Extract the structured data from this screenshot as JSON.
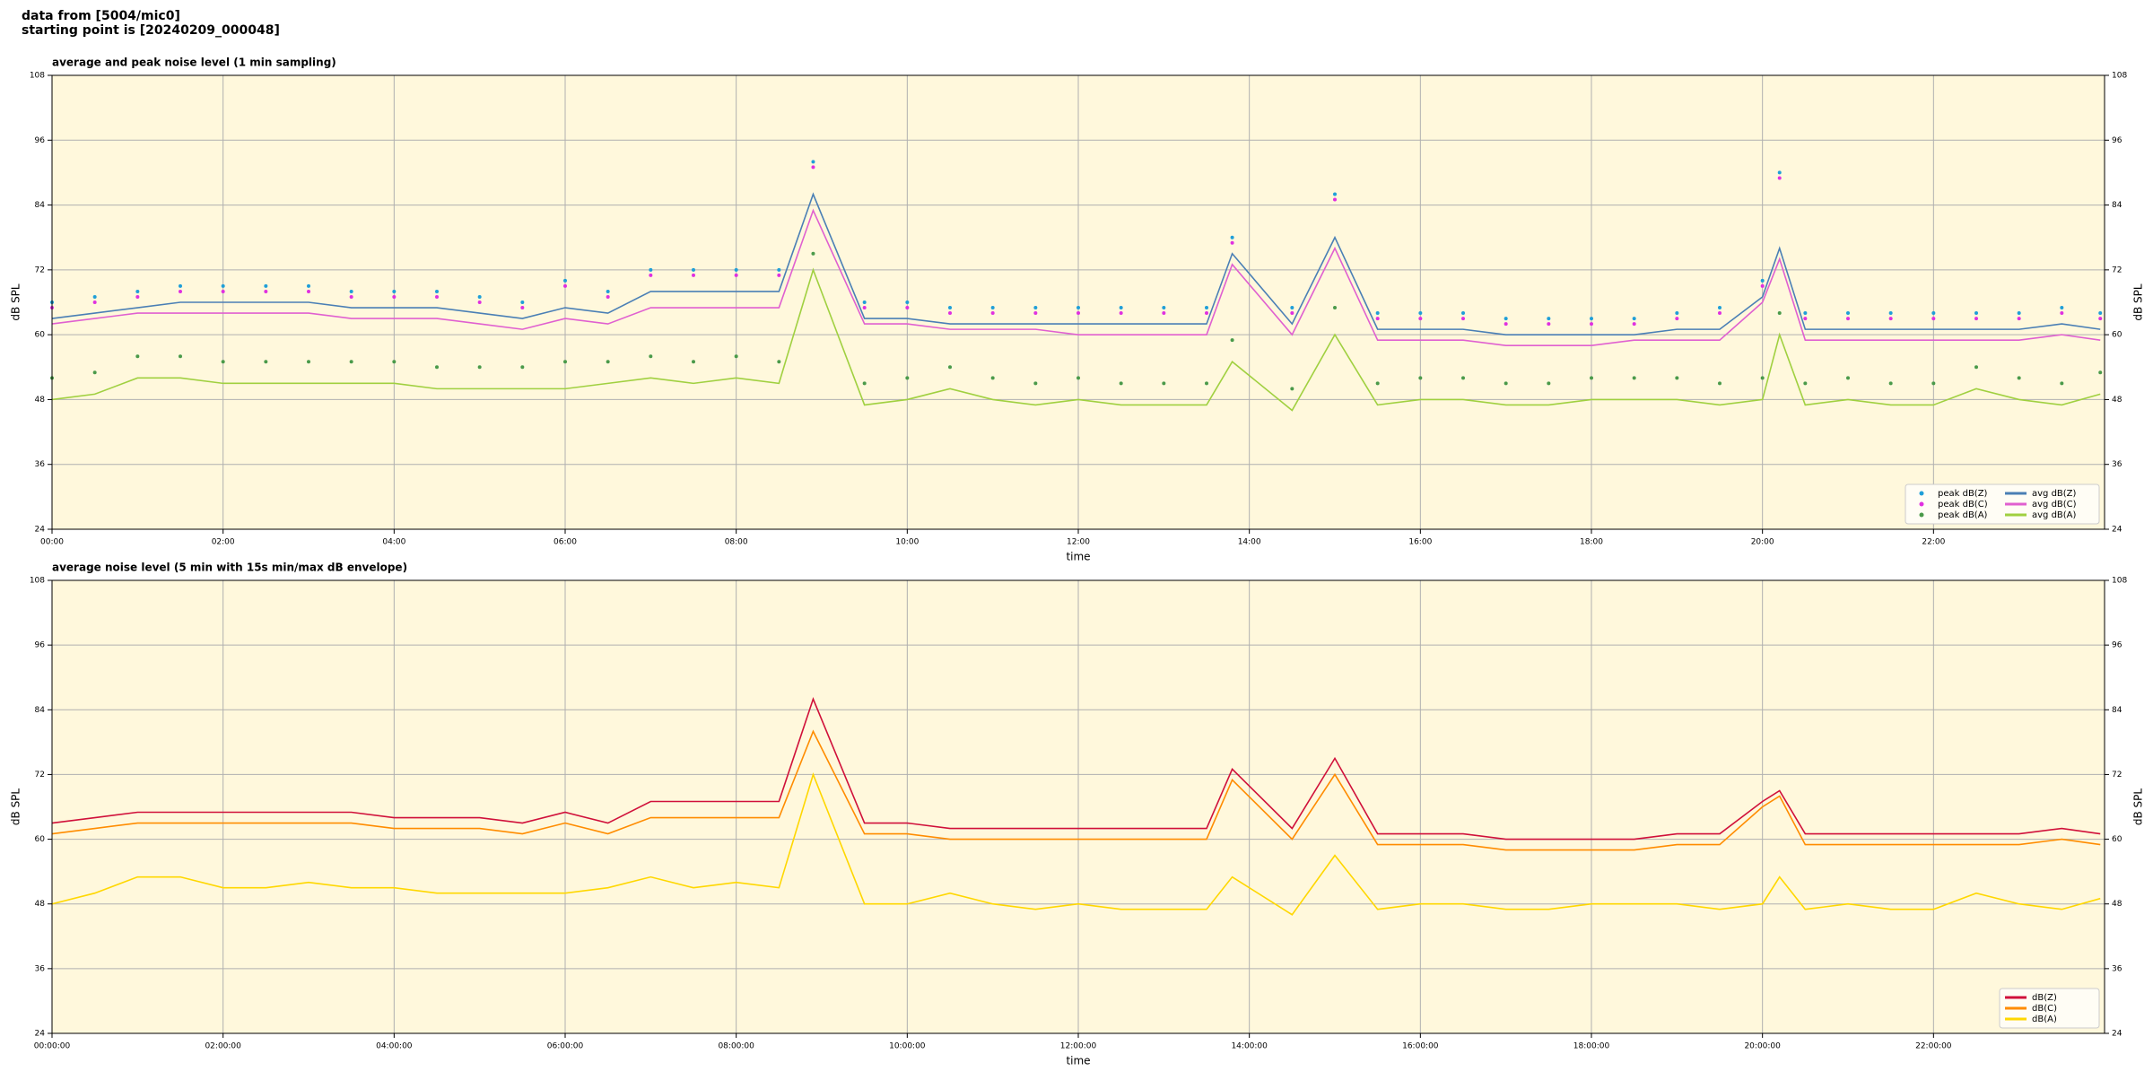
{
  "header": {
    "line1": "data from [5004/mic0]",
    "line2": "starting point is [20240209_000048]"
  },
  "chart_data": [
    {
      "type": "line",
      "title": "average and peak noise level (1 min sampling)",
      "xlabel": "time",
      "ylabel": "dB SPL",
      "xlim": [
        0,
        24
      ],
      "ylim": [
        24,
        108
      ],
      "yticks": [
        24,
        36,
        48,
        60,
        72,
        84,
        96,
        108
      ],
      "xticks": [
        {
          "value": 0,
          "label": "00:00"
        },
        {
          "value": 2,
          "label": "02:00"
        },
        {
          "value": 4,
          "label": "04:00"
        },
        {
          "value": 6,
          "label": "06:00"
        },
        {
          "value": 8,
          "label": "08:00"
        },
        {
          "value": 10,
          "label": "10:00"
        },
        {
          "value": 12,
          "label": "12:00"
        },
        {
          "value": 14,
          "label": "14:00"
        },
        {
          "value": 16,
          "label": "16:00"
        },
        {
          "value": 18,
          "label": "18:00"
        },
        {
          "value": 20,
          "label": "20:00"
        },
        {
          "value": 22,
          "label": "22:00"
        }
      ],
      "grid": true,
      "legend": "lower right",
      "background": "#fff8dc",
      "x": [
        0,
        0.5,
        1,
        1.5,
        2,
        2.5,
        3,
        3.5,
        4,
        4.5,
        5,
        5.5,
        6,
        6.5,
        7,
        7.5,
        8,
        8.5,
        8.9,
        9.5,
        10,
        10.5,
        11,
        11.5,
        12,
        12.5,
        13,
        13.5,
        13.8,
        14.5,
        15,
        15.5,
        16,
        16.5,
        17,
        17.5,
        18,
        18.5,
        19,
        19.5,
        20,
        20.2,
        20.5,
        21,
        21.5,
        22,
        22.5,
        23,
        23.5,
        23.95
      ],
      "series": [
        {
          "name": "peak dB(Z)",
          "type": "scatter",
          "color": "#1f9fd8",
          "values": [
            66,
            67,
            68,
            69,
            69,
            69,
            69,
            68,
            68,
            68,
            67,
            66,
            70,
            68,
            72,
            72,
            72,
            72,
            92,
            66,
            66,
            65,
            65,
            65,
            65,
            65,
            65,
            65,
            78,
            65,
            86,
            64,
            64,
            64,
            63,
            63,
            63,
            63,
            64,
            65,
            70,
            90,
            64,
            64,
            64,
            64,
            64,
            64,
            65,
            64
          ]
        },
        {
          "name": "peak dB(C)",
          "type": "scatter",
          "color": "#e030e0",
          "values": [
            65,
            66,
            67,
            68,
            68,
            68,
            68,
            67,
            67,
            67,
            66,
            65,
            69,
            67,
            71,
            71,
            71,
            71,
            91,
            65,
            65,
            64,
            64,
            64,
            64,
            64,
            64,
            64,
            77,
            64,
            85,
            63,
            63,
            63,
            62,
            62,
            62,
            62,
            63,
            64,
            69,
            89,
            63,
            63,
            63,
            63,
            63,
            63,
            64,
            63
          ]
        },
        {
          "name": "peak dB(A)",
          "type": "scatter",
          "color": "#4a9a4a",
          "values": [
            52,
            53,
            56,
            56,
            55,
            55,
            55,
            55,
            55,
            54,
            54,
            54,
            55,
            55,
            56,
            55,
            56,
            55,
            75,
            51,
            52,
            54,
            52,
            51,
            52,
            51,
            51,
            51,
            59,
            50,
            65,
            51,
            52,
            52,
            51,
            51,
            52,
            52,
            52,
            51,
            52,
            64,
            51,
            52,
            51,
            51,
            54,
            52,
            51,
            53
          ]
        },
        {
          "name": "avg dB(Z)",
          "type": "line",
          "color": "#4a7fb5",
          "values": [
            63,
            64,
            65,
            66,
            66,
            66,
            66,
            65,
            65,
            65,
            64,
            63,
            65,
            64,
            68,
            68,
            68,
            68,
            86,
            63,
            63,
            62,
            62,
            62,
            62,
            62,
            62,
            62,
            75,
            62,
            78,
            61,
            61,
            61,
            60,
            60,
            60,
            60,
            61,
            61,
            67,
            76,
            61,
            61,
            61,
            61,
            61,
            61,
            62,
            61
          ]
        },
        {
          "name": "avg dB(C)",
          "type": "line",
          "color": "#e060d0",
          "values": [
            62,
            63,
            64,
            64,
            64,
            64,
            64,
            63,
            63,
            63,
            62,
            61,
            63,
            62,
            65,
            65,
            65,
            65,
            83,
            62,
            62,
            61,
            61,
            61,
            60,
            60,
            60,
            60,
            73,
            60,
            76,
            59,
            59,
            59,
            58,
            58,
            58,
            59,
            59,
            59,
            66,
            74,
            59,
            59,
            59,
            59,
            59,
            59,
            60,
            59
          ]
        },
        {
          "name": "avg dB(A)",
          "type": "line",
          "color": "#a0d040",
          "values": [
            48,
            49,
            52,
            52,
            51,
            51,
            51,
            51,
            51,
            50,
            50,
            50,
            50,
            51,
            52,
            51,
            52,
            51,
            72,
            47,
            48,
            50,
            48,
            47,
            48,
            47,
            47,
            47,
            55,
            46,
            60,
            47,
            48,
            48,
            47,
            47,
            48,
            48,
            48,
            47,
            48,
            60,
            47,
            48,
            47,
            47,
            50,
            48,
            47,
            49
          ]
        }
      ]
    },
    {
      "type": "line",
      "title": "average noise level (5 min with 15s min/max dB envelope)",
      "xlabel": "time",
      "ylabel": "dB SPL",
      "xlim": [
        0,
        24
      ],
      "ylim": [
        24,
        108
      ],
      "yticks": [
        24,
        36,
        48,
        60,
        72,
        84,
        96,
        108
      ],
      "xticks": [
        {
          "value": 0,
          "label": "00:00:00"
        },
        {
          "value": 2,
          "label": "02:00:00"
        },
        {
          "value": 4,
          "label": "04:00:00"
        },
        {
          "value": 6,
          "label": "06:00:00"
        },
        {
          "value": 8,
          "label": "08:00:00"
        },
        {
          "value": 10,
          "label": "10:00:00"
        },
        {
          "value": 12,
          "label": "12:00:00"
        },
        {
          "value": 14,
          "label": "14:00:00"
        },
        {
          "value": 16,
          "label": "16:00:00"
        },
        {
          "value": 18,
          "label": "18:00:00"
        },
        {
          "value": 20,
          "label": "20:00:00"
        },
        {
          "value": 22,
          "label": "22:00:00"
        }
      ],
      "grid": true,
      "legend": "lower right",
      "background": "#fff8dc",
      "x": [
        0,
        0.5,
        1,
        1.5,
        2,
        2.5,
        3,
        3.5,
        4,
        4.5,
        5,
        5.5,
        6,
        6.5,
        7,
        7.5,
        8,
        8.5,
        8.9,
        9.5,
        10,
        10.5,
        11,
        11.5,
        12,
        12.5,
        13,
        13.5,
        13.8,
        14.5,
        15,
        15.5,
        16,
        16.5,
        17,
        17.5,
        18,
        18.5,
        19,
        19.5,
        20,
        20.2,
        20.5,
        21,
        21.5,
        22,
        22.5,
        23,
        23.5,
        23.95
      ],
      "series": [
        {
          "name": "dB(Z)",
          "type": "line",
          "color": "#d0103a",
          "values": [
            63,
            64,
            65,
            65,
            65,
            65,
            65,
            65,
            64,
            64,
            64,
            63,
            65,
            63,
            67,
            67,
            67,
            67,
            86,
            63,
            63,
            62,
            62,
            62,
            62,
            62,
            62,
            62,
            73,
            62,
            75,
            61,
            61,
            61,
            60,
            60,
            60,
            60,
            61,
            61,
            67,
            69,
            61,
            61,
            61,
            61,
            61,
            61,
            62,
            61
          ]
        },
        {
          "name": "dB(C)",
          "type": "line",
          "color": "#ff8c00",
          "values": [
            61,
            62,
            63,
            63,
            63,
            63,
            63,
            63,
            62,
            62,
            62,
            61,
            63,
            61,
            64,
            64,
            64,
            64,
            80,
            61,
            61,
            60,
            60,
            60,
            60,
            60,
            60,
            60,
            71,
            60,
            72,
            59,
            59,
            59,
            58,
            58,
            58,
            58,
            59,
            59,
            66,
            68,
            59,
            59,
            59,
            59,
            59,
            59,
            60,
            59
          ]
        },
        {
          "name": "dB(A)",
          "type": "line",
          "color": "#ffd700",
          "values": [
            48,
            50,
            53,
            53,
            51,
            51,
            52,
            51,
            51,
            50,
            50,
            50,
            50,
            51,
            53,
            51,
            52,
            51,
            72,
            48,
            48,
            50,
            48,
            47,
            48,
            47,
            47,
            47,
            53,
            46,
            57,
            47,
            48,
            48,
            47,
            47,
            48,
            48,
            48,
            47,
            48,
            53,
            47,
            48,
            47,
            47,
            50,
            48,
            47,
            49
          ]
        }
      ]
    }
  ]
}
